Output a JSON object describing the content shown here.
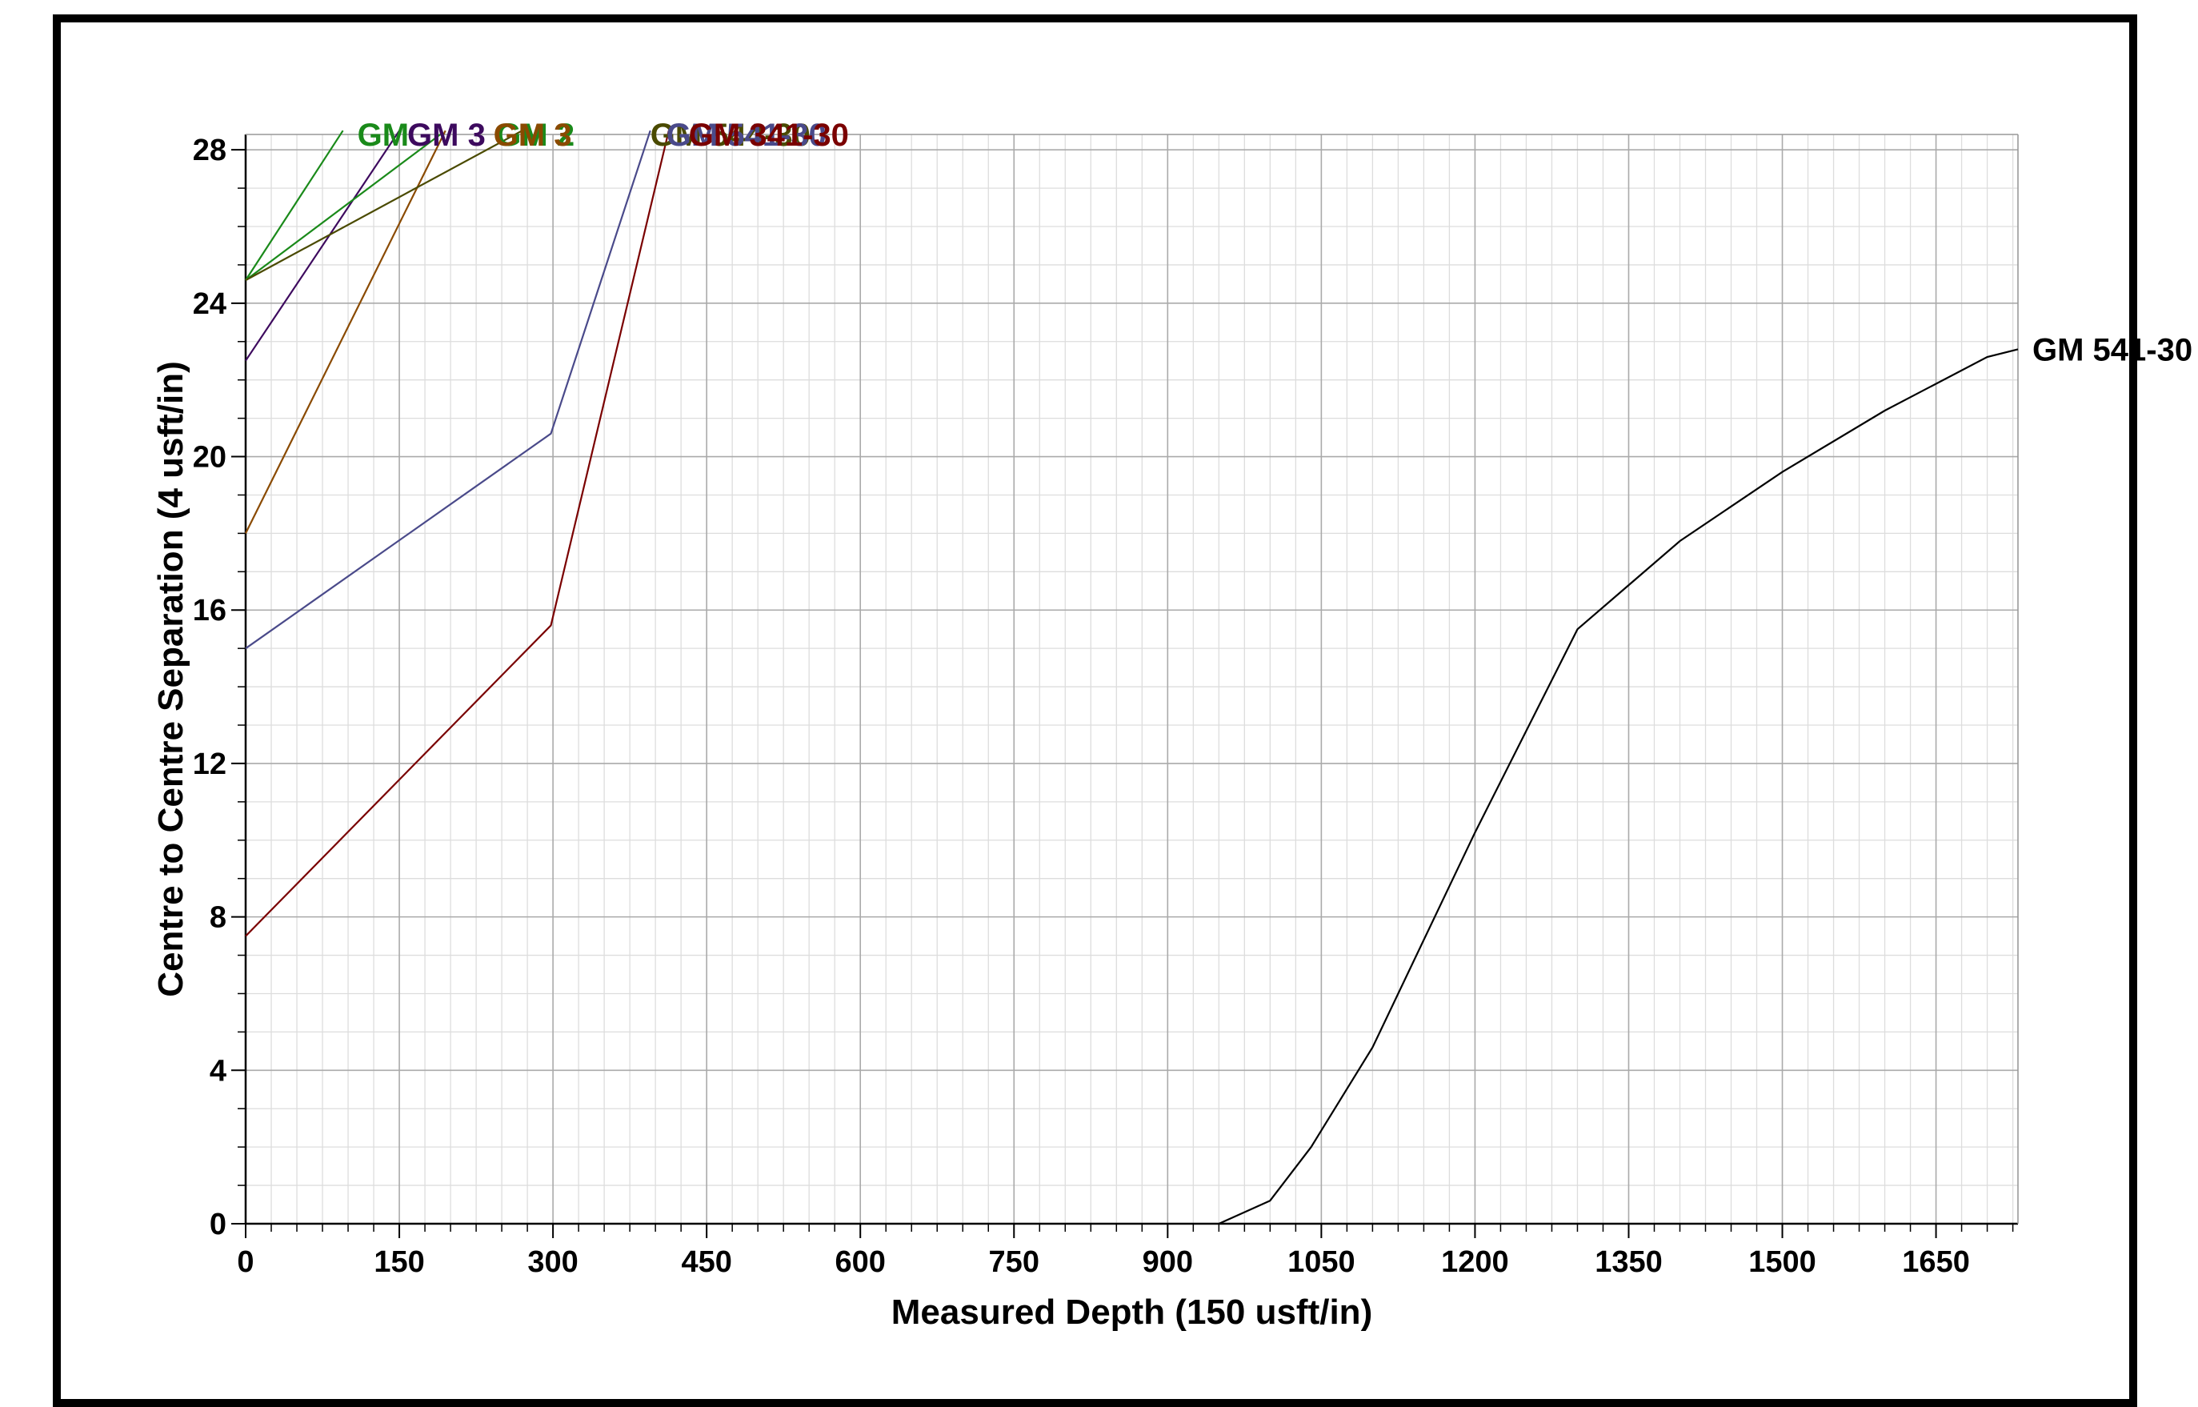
{
  "chart_data": {
    "type": "line",
    "xlabel": "Measured Depth (150 usft/in)",
    "ylabel": "Centre to Centre Separation (4 usft/in)",
    "xlim": [
      0,
      1730
    ],
    "ylim": [
      0,
      28.4
    ],
    "x_ticks": [
      0,
      150,
      300,
      450,
      600,
      750,
      900,
      1050,
      1200,
      1350,
      1500,
      1650
    ],
    "y_ticks": [
      0,
      4,
      8,
      12,
      16,
      20,
      24,
      28
    ],
    "x_minor_step": 25,
    "y_minor_step": 1,
    "grid": true,
    "series": [
      {
        "name": "GM",
        "color": "#1a8a1a",
        "x": [
          0,
          95
        ],
        "y": [
          24.6,
          28.5
        ],
        "label_offset": 18
      },
      {
        "name": "GM 3",
        "color": "#3d0a5e",
        "x": [
          0,
          150
        ],
        "y": [
          22.5,
          28.5
        ],
        "label_offset": 10
      },
      {
        "name": "GM 2",
        "color": "#1a8a1a",
        "x": [
          0,
          190
        ],
        "y": [
          24.6,
          28.4
        ],
        "label_offset": 70
      },
      {
        "name": "GM 3",
        "color": "#8a4a00",
        "x": [
          0,
          195
        ],
        "y": [
          18.0,
          28.5
        ],
        "label_offset": 60
      },
      {
        "name": "GM 544-30",
        "color": "#4a4a00",
        "x": [
          0,
          270
        ],
        "y": [
          24.6,
          28.5
        ],
        "label_offset": 160
      },
      {
        "name": "GM 541-30",
        "color": "#4a4a8a",
        "x": [
          0,
          298,
          395
        ],
        "y": [
          15.0,
          20.6,
          28.5
        ],
        "label_offset": 20
      },
      {
        "name": "GM 341-30",
        "color": "#7a0000",
        "x": [
          0,
          298,
          413
        ],
        "y": [
          7.5,
          15.6,
          28.5
        ],
        "label_offset": 25
      },
      {
        "name": "GM 541-30",
        "color": "#000000",
        "x": [
          950,
          1000,
          1040,
          1100,
          1200,
          1300,
          1400,
          1500,
          1600,
          1700,
          1730
        ],
        "y": [
          0,
          0.6,
          2.0,
          4.6,
          10.2,
          15.5,
          17.8,
          19.6,
          21.2,
          22.6,
          22.8
        ],
        "label_offset": 18
      }
    ]
  }
}
